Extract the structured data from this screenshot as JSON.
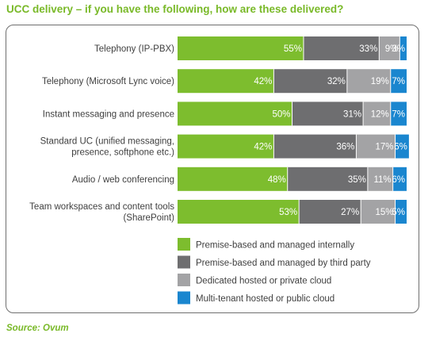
{
  "colors": {
    "title": "#79b928",
    "label_text": "#3f3f3f",
    "bar_text": "#ffffff",
    "source_text": "#79b928"
  },
  "chart_data": {
    "type": "bar",
    "orientation": "horizontal",
    "stacked": true,
    "title": "UCC delivery – if you have the following, how are these delivered?",
    "source": "Source: Ovum",
    "categories": [
      [
        "Telephony (IP-PBX)"
      ],
      [
        "Telephony (Microsoft Lync voice)"
      ],
      [
        "Instant messaging and presence"
      ],
      [
        "Standard UC (unified messaging,",
        "presence, softphone etc.)"
      ],
      [
        "Audio / web conferencing"
      ],
      [
        "Team workspaces and content tools",
        "(SharePoint)"
      ]
    ],
    "series": [
      {
        "name": "Premise-based and managed internally",
        "color": "#7dbd2e",
        "values": [
          55,
          42,
          50,
          42,
          48,
          53
        ]
      },
      {
        "name": "Premise-based and managed by third party",
        "color": "#6e6e70",
        "values": [
          33,
          32,
          31,
          36,
          35,
          27
        ]
      },
      {
        "name": "Dedicated hosted or private cloud",
        "color": "#a3a3a5",
        "values": [
          9,
          19,
          12,
          17,
          11,
          15
        ]
      },
      {
        "name": "Multi-tenant hosted or public cloud",
        "color": "#1a86cf",
        "values": [
          3,
          7,
          7,
          6,
          6,
          5
        ]
      }
    ],
    "value_suffix": "%",
    "xlim": [
      0,
      100
    ],
    "legend_position": "bottom-center",
    "grid": false
  }
}
